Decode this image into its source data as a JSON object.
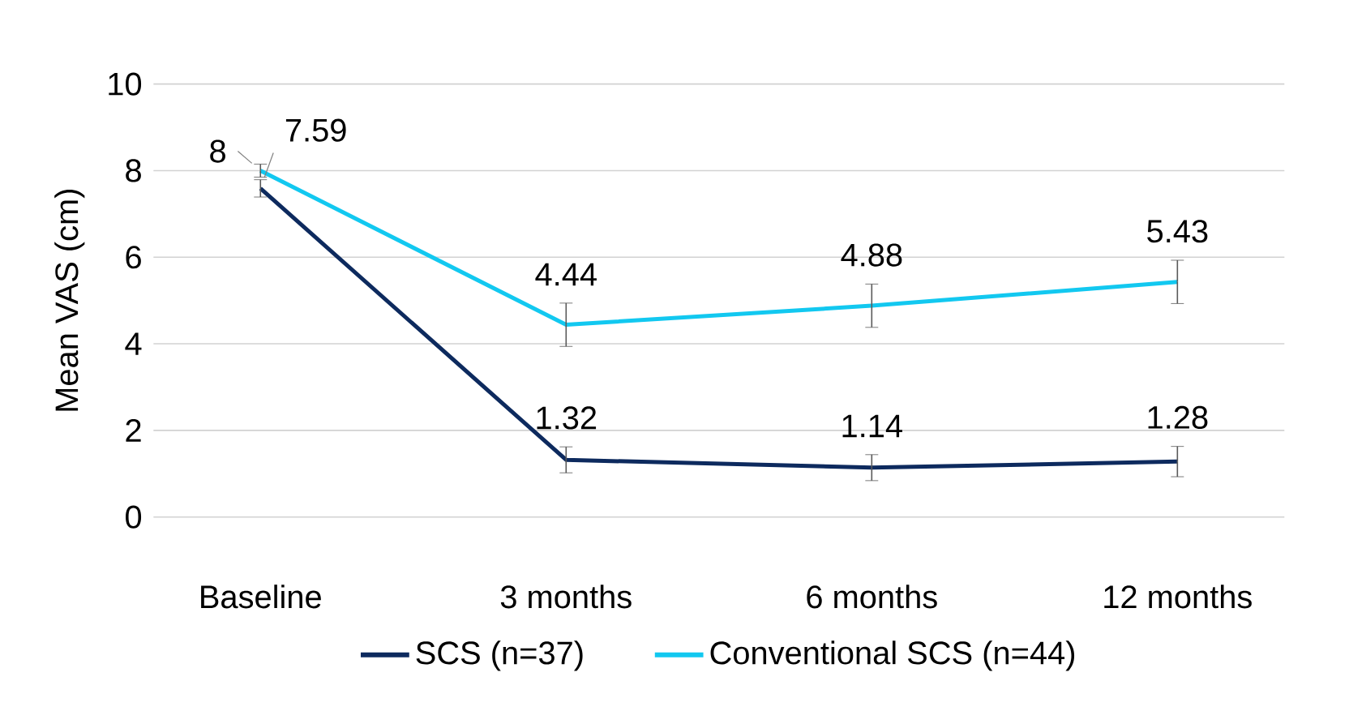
{
  "chart_data": {
    "type": "line",
    "ylabel": "Mean VAS (cm)",
    "categories": [
      "Baseline",
      "3 months",
      "6 months",
      "12 months"
    ],
    "series": [
      {
        "name": "SCS (n=37)",
        "color": "#0d2a5e",
        "values": [
          7.59,
          1.32,
          1.14,
          1.28
        ],
        "errors": [
          0.2,
          0.3,
          0.3,
          0.35
        ],
        "value_labels": [
          "7.59",
          "1.32",
          "1.14",
          "1.28"
        ]
      },
      {
        "name": "Conventional SCS (n=44)",
        "color": "#12c8f0",
        "values": [
          8,
          4.44,
          4.88,
          5.43
        ],
        "errors": [
          0.15,
          0.5,
          0.5,
          0.5
        ],
        "value_labels": [
          "8",
          "4.44",
          "4.88",
          "5.43"
        ]
      }
    ],
    "ylim": [
      0,
      10
    ],
    "yticks": [
      0,
      2,
      4,
      6,
      8,
      10
    ],
    "grid": "y",
    "legend": "bottom",
    "marker": "none",
    "line_style": "solid"
  }
}
